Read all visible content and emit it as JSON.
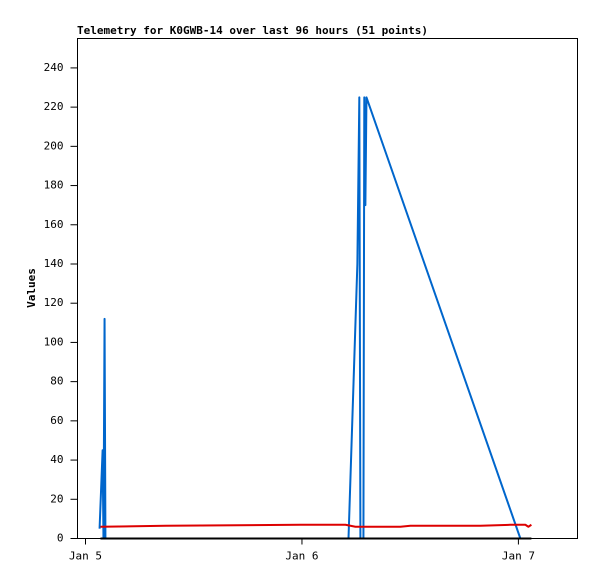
{
  "chart_data": {
    "type": "line",
    "title": "Telemetry for K0GWB-14 over last 96 hours (51 points)",
    "y_label": "Values",
    "xlim": [
      4.963,
      7.273
    ],
    "xticks": [
      {
        "value": 5,
        "label": "Jan 5"
      },
      {
        "value": 6,
        "label": "Jan 6"
      },
      {
        "value": 7,
        "label": "Jan 7"
      }
    ],
    "ylim": [
      0,
      255
    ],
    "yticks": [
      0,
      20,
      40,
      60,
      80,
      100,
      120,
      140,
      160,
      180,
      200,
      220,
      240
    ],
    "series": [
      {
        "color": "#0066cc",
        "x": [
          5.065,
          5.079,
          5.083,
          5.088,
          5.092,
          6.215,
          6.256,
          6.265,
          6.27,
          6.284,
          6.288,
          6.293,
          6.298,
          7.009
        ],
        "values": [
          5,
          45,
          0,
          112,
          0,
          0,
          140,
          225,
          0,
          0,
          225,
          170,
          225,
          0
        ]
      },
      {
        "color": "#dd0000",
        "x": [
          5.069,
          5.37,
          5.993,
          6.201,
          6.247,
          6.455,
          6.501,
          6.824,
          6.963,
          7.032,
          7.046,
          7.06
        ],
        "values": [
          6,
          6.5,
          7,
          7,
          6,
          6,
          6.5,
          6.5,
          7,
          7,
          6,
          7
        ]
      },
      {
        "color": "#000000",
        "x": [
          5.069,
          7.06
        ],
        "values": [
          0,
          0
        ]
      }
    ]
  }
}
